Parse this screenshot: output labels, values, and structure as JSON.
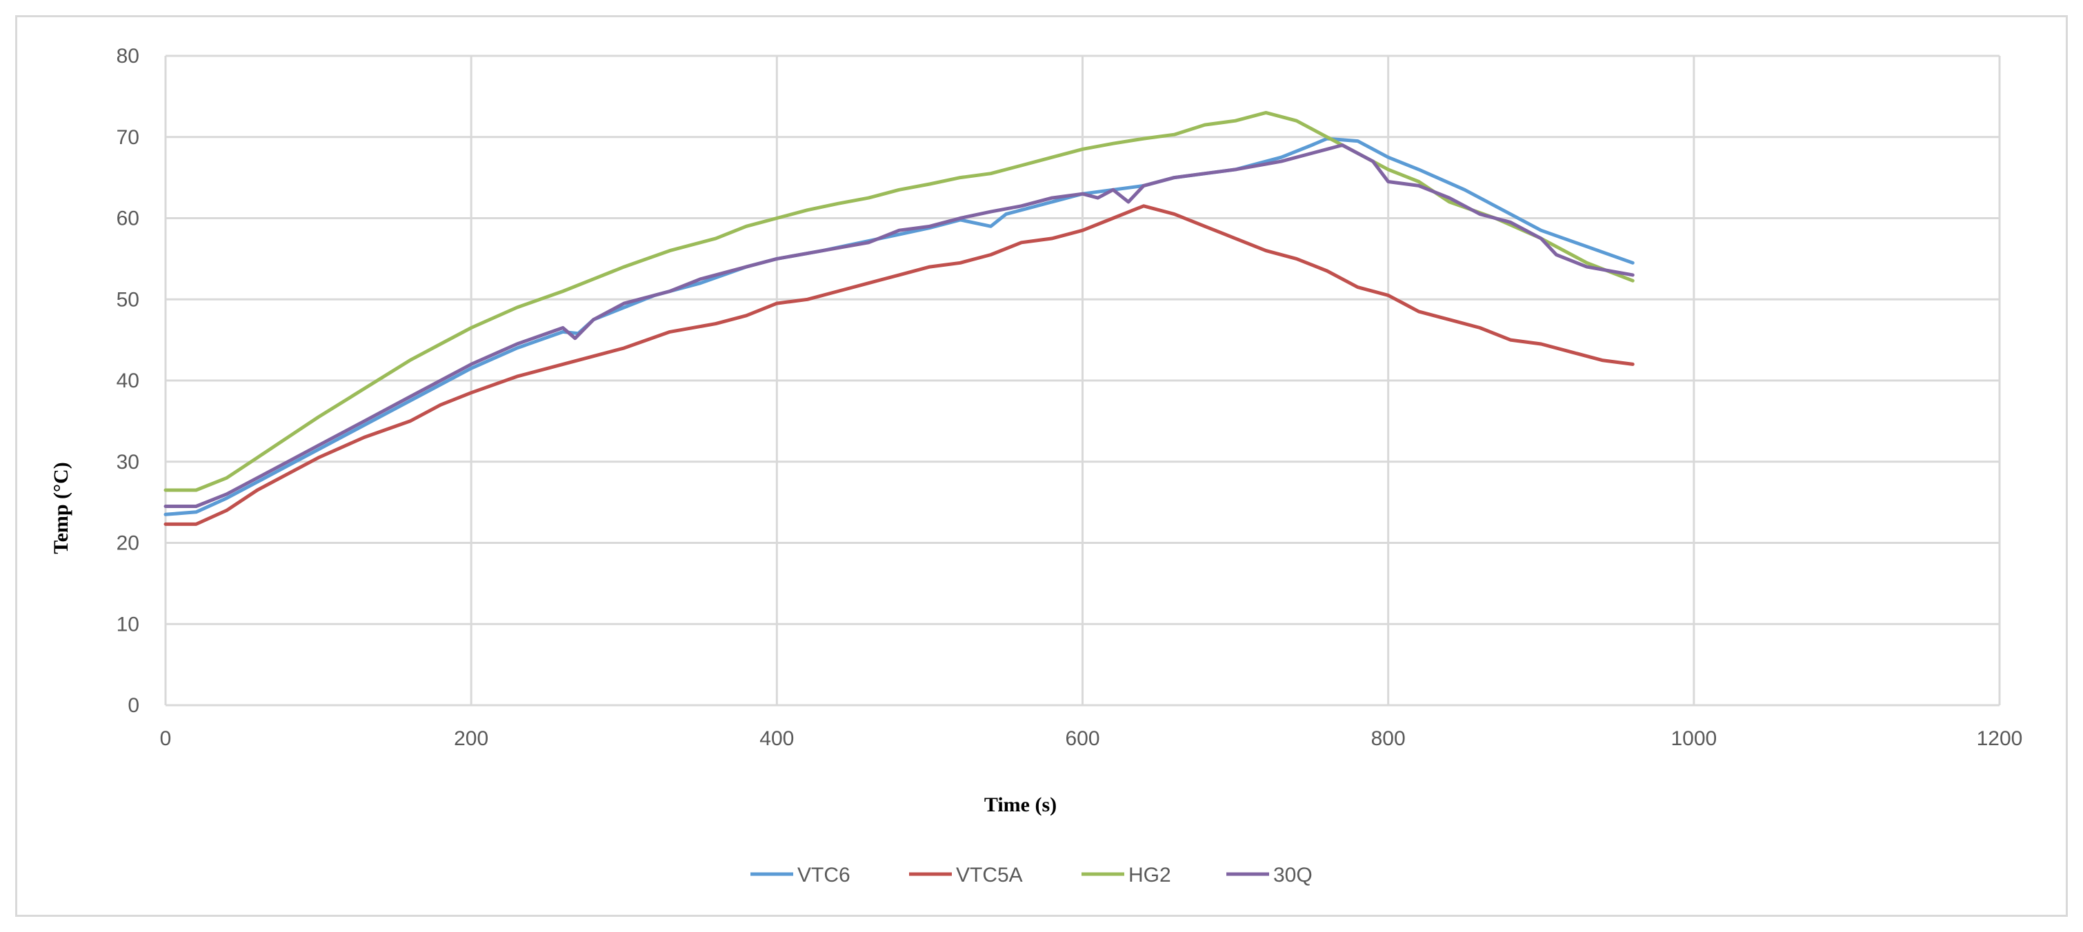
{
  "chart_data": {
    "type": "line",
    "title": "",
    "xlabel": "Time (s)",
    "ylabel": "Temp (°C)",
    "xlim": [
      0,
      1200
    ],
    "ylim": [
      0,
      80
    ],
    "xticks": [
      0,
      200,
      400,
      600,
      800,
      1000,
      1200
    ],
    "yticks": [
      0,
      10,
      20,
      30,
      40,
      50,
      60,
      70,
      80
    ],
    "grid": true,
    "legend_position": "bottom",
    "series": [
      {
        "name": "VTC6",
        "color": "#5b9bd5",
        "points": [
          [
            0,
            23.5
          ],
          [
            20,
            23.8
          ],
          [
            40,
            25.5
          ],
          [
            60,
            27.5
          ],
          [
            80,
            29.5
          ],
          [
            100,
            31.5
          ],
          [
            120,
            33.5
          ],
          [
            150,
            36.5
          ],
          [
            180,
            39.5
          ],
          [
            200,
            41.5
          ],
          [
            230,
            44
          ],
          [
            260,
            46
          ],
          [
            270,
            45.8
          ],
          [
            280,
            47.5
          ],
          [
            300,
            49
          ],
          [
            320,
            50.5
          ],
          [
            350,
            52
          ],
          [
            380,
            54
          ],
          [
            400,
            55
          ],
          [
            430,
            56
          ],
          [
            450,
            56.8
          ],
          [
            480,
            58
          ],
          [
            500,
            58.8
          ],
          [
            520,
            59.8
          ],
          [
            540,
            59
          ],
          [
            550,
            60.5
          ],
          [
            580,
            62
          ],
          [
            600,
            63
          ],
          [
            620,
            63.5
          ],
          [
            640,
            64
          ],
          [
            660,
            65
          ],
          [
            700,
            66
          ],
          [
            730,
            67.5
          ],
          [
            750,
            69
          ],
          [
            760,
            69.8
          ],
          [
            780,
            69.5
          ],
          [
            800,
            67.5
          ],
          [
            820,
            66
          ],
          [
            850,
            63.5
          ],
          [
            880,
            60.5
          ],
          [
            900,
            58.5
          ],
          [
            930,
            56.5
          ],
          [
            960,
            54.5
          ]
        ]
      },
      {
        "name": "VTC5A",
        "color": "#c0504d",
        "points": [
          [
            0,
            22.3
          ],
          [
            20,
            22.3
          ],
          [
            40,
            24
          ],
          [
            60,
            26.5
          ],
          [
            80,
            28.5
          ],
          [
            100,
            30.5
          ],
          [
            130,
            33
          ],
          [
            160,
            35
          ],
          [
            180,
            37
          ],
          [
            200,
            38.5
          ],
          [
            230,
            40.5
          ],
          [
            260,
            42
          ],
          [
            280,
            43
          ],
          [
            300,
            44
          ],
          [
            330,
            46
          ],
          [
            360,
            47
          ],
          [
            380,
            48
          ],
          [
            400,
            49.5
          ],
          [
            420,
            50
          ],
          [
            440,
            51
          ],
          [
            460,
            52
          ],
          [
            480,
            53
          ],
          [
            500,
            54
          ],
          [
            520,
            54.5
          ],
          [
            540,
            55.5
          ],
          [
            560,
            57
          ],
          [
            580,
            57.5
          ],
          [
            600,
            58.5
          ],
          [
            620,
            60
          ],
          [
            640,
            61.5
          ],
          [
            650,
            61
          ],
          [
            660,
            60.5
          ],
          [
            680,
            59
          ],
          [
            700,
            57.5
          ],
          [
            720,
            56
          ],
          [
            740,
            55
          ],
          [
            760,
            53.5
          ],
          [
            780,
            51.5
          ],
          [
            800,
            50.5
          ],
          [
            820,
            48.5
          ],
          [
            840,
            47.5
          ],
          [
            860,
            46.5
          ],
          [
            880,
            45
          ],
          [
            900,
            44.5
          ],
          [
            920,
            43.5
          ],
          [
            940,
            42.5
          ],
          [
            960,
            42
          ]
        ]
      },
      {
        "name": "HG2",
        "color": "#9bbb59",
        "points": [
          [
            0,
            26.5
          ],
          [
            20,
            26.5
          ],
          [
            40,
            28
          ],
          [
            60,
            30.5
          ],
          [
            80,
            33
          ],
          [
            100,
            35.5
          ],
          [
            130,
            39
          ],
          [
            160,
            42.5
          ],
          [
            180,
            44.5
          ],
          [
            200,
            46.5
          ],
          [
            230,
            49
          ],
          [
            260,
            51
          ],
          [
            280,
            52.5
          ],
          [
            300,
            54
          ],
          [
            330,
            56
          ],
          [
            360,
            57.5
          ],
          [
            380,
            59
          ],
          [
            400,
            60
          ],
          [
            420,
            61
          ],
          [
            440,
            61.8
          ],
          [
            460,
            62.5
          ],
          [
            480,
            63.5
          ],
          [
            500,
            64.2
          ],
          [
            520,
            65
          ],
          [
            540,
            65.5
          ],
          [
            560,
            66.5
          ],
          [
            580,
            67.5
          ],
          [
            600,
            68.5
          ],
          [
            620,
            69.2
          ],
          [
            640,
            69.8
          ],
          [
            660,
            70.3
          ],
          [
            680,
            71.5
          ],
          [
            700,
            72
          ],
          [
            720,
            73
          ],
          [
            740,
            72
          ],
          [
            760,
            70
          ],
          [
            780,
            68
          ],
          [
            800,
            66
          ],
          [
            820,
            64.5
          ],
          [
            840,
            62
          ],
          [
            870,
            60
          ],
          [
            900,
            57.5
          ],
          [
            930,
            54.5
          ],
          [
            960,
            52.3
          ]
        ]
      },
      {
        "name": "30Q",
        "color": "#8064a2",
        "points": [
          [
            0,
            24.5
          ],
          [
            20,
            24.5
          ],
          [
            40,
            26
          ],
          [
            60,
            28
          ],
          [
            80,
            30
          ],
          [
            100,
            32
          ],
          [
            130,
            35
          ],
          [
            160,
            38
          ],
          [
            180,
            40
          ],
          [
            200,
            42
          ],
          [
            230,
            44.5
          ],
          [
            260,
            46.5
          ],
          [
            268,
            45.2
          ],
          [
            280,
            47.5
          ],
          [
            300,
            49.5
          ],
          [
            330,
            51
          ],
          [
            350,
            52.5
          ],
          [
            380,
            54
          ],
          [
            400,
            55
          ],
          [
            430,
            56
          ],
          [
            460,
            57
          ],
          [
            480,
            58.5
          ],
          [
            500,
            59
          ],
          [
            520,
            60
          ],
          [
            540,
            60.8
          ],
          [
            560,
            61.5
          ],
          [
            580,
            62.5
          ],
          [
            600,
            63
          ],
          [
            610,
            62.5
          ],
          [
            620,
            63.5
          ],
          [
            630,
            62
          ],
          [
            640,
            64
          ],
          [
            660,
            65
          ],
          [
            680,
            65.5
          ],
          [
            700,
            66
          ],
          [
            730,
            67
          ],
          [
            760,
            68.5
          ],
          [
            770,
            69
          ],
          [
            790,
            67
          ],
          [
            800,
            64.5
          ],
          [
            820,
            64
          ],
          [
            840,
            62.5
          ],
          [
            860,
            60.5
          ],
          [
            880,
            59.5
          ],
          [
            900,
            57.5
          ],
          [
            910,
            55.5
          ],
          [
            930,
            54
          ],
          [
            960,
            53
          ]
        ]
      }
    ]
  }
}
